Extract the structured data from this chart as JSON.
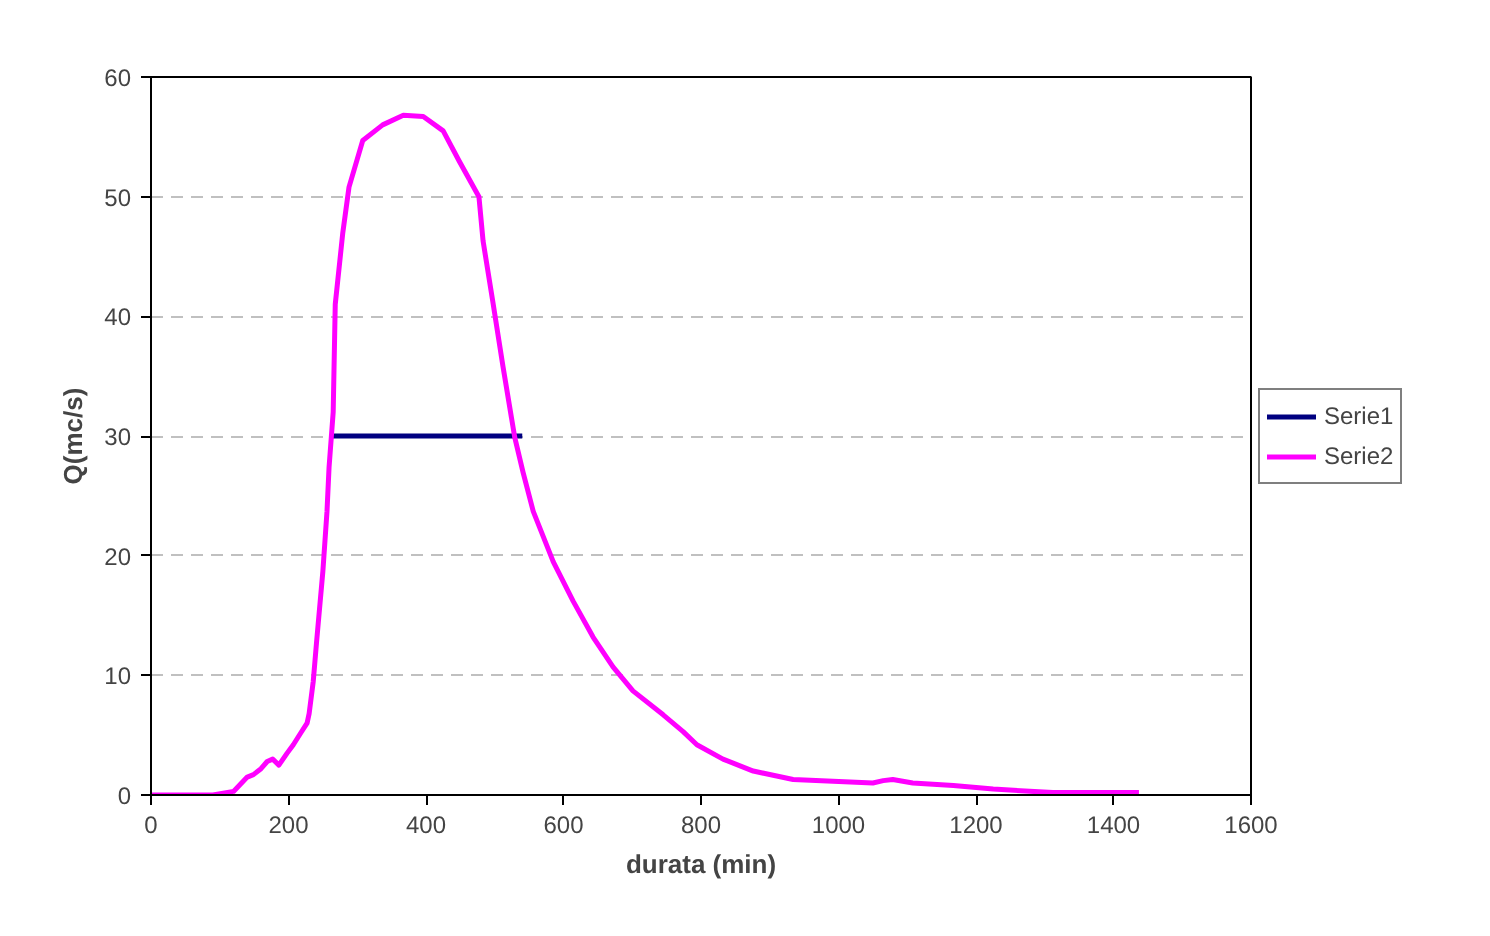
{
  "chart_data": {
    "type": "line",
    "xlabel": "durata (min)",
    "ylabel": "Q(mc/s)",
    "xlim": [
      0,
      1600
    ],
    "xticks": [
      0,
      200,
      400,
      600,
      800,
      1000,
      1200,
      1400,
      1600
    ],
    "ylim": [
      0,
      60
    ],
    "yticks": [
      0,
      10,
      20,
      30,
      40,
      50,
      60
    ],
    "grid": "y",
    "legend": "right",
    "marker": "none",
    "line_style": "solid",
    "series": [
      {
        "name": "Serie1",
        "color": "#000080",
        "x": [
          262,
          540
        ],
        "values": [
          30,
          30
        ]
      },
      {
        "name": "Serie2",
        "color": "#ff00ff",
        "x": [
          0,
          90,
          120,
          140,
          149,
          160,
          169,
          177,
          186,
          198,
          207,
          218,
          227,
          230,
          236,
          241,
          250,
          256,
          259,
          265,
          268,
          279,
          288,
          308,
          337,
          367,
          396,
          425,
          448,
          477,
          483,
          497,
          512,
          529,
          541,
          556,
          585,
          614,
          643,
          672,
          701,
          745,
          774,
          794,
          832,
          876,
          934,
          1050,
          1065,
          1079,
          1108,
          1167,
          1225,
          1312,
          1437
        ],
        "values": [
          0,
          0,
          0.3,
          1.5,
          1.7,
          2.2,
          2.8,
          3,
          2.5,
          3.5,
          4.2,
          5.2,
          6,
          6.8,
          9.5,
          12.9,
          18.7,
          23.7,
          27.4,
          32,
          41,
          47,
          50.8,
          54.7,
          56,
          56.8,
          56.7,
          55.5,
          53,
          50,
          46.3,
          41.3,
          35.8,
          29.9,
          27,
          23.7,
          19.5,
          16.2,
          13.2,
          10.7,
          8.7,
          6.7,
          5.3,
          4.2,
          3,
          2,
          1.3,
          1,
          1.2,
          1.3,
          1,
          0.8,
          0.5,
          0.2,
          0.2
        ]
      }
    ]
  }
}
